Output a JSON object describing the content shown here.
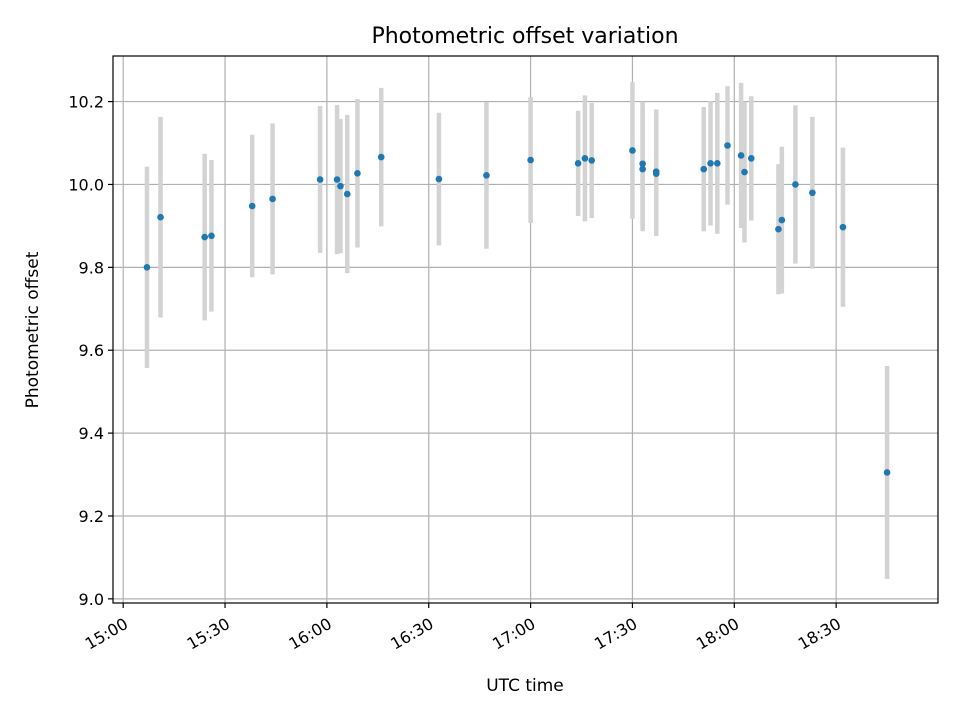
{
  "chart_data": {
    "type": "scatter",
    "title": "Photometric offset variation",
    "xlabel": "UTC time",
    "ylabel": "Photometric offset",
    "x_ticks": [
      "15:00",
      "15:30",
      "16:00",
      "16:30",
      "17:00",
      "17:30",
      "18:00",
      "18:30"
    ],
    "y_ticks": [
      "9.0",
      "9.2",
      "9.4",
      "9.6",
      "9.8",
      "10.0",
      "10.2"
    ],
    "xlim": [
      "14:57",
      "19:00"
    ],
    "ylim": [
      8.99,
      10.31
    ],
    "grid": true,
    "errorbar_color": "#d3d3d3",
    "point_color": "#1f77b4",
    "series": [
      {
        "points": [
          {
            "x": "15:07",
            "y": 9.8,
            "err": 0.243
          },
          {
            "x": "15:11",
            "y": 9.921,
            "err": 0.242
          },
          {
            "x": "15:24",
            "y": 9.873,
            "err": 0.201
          },
          {
            "x": "15:26",
            "y": 9.876,
            "err": 0.183
          },
          {
            "x": "15:38",
            "y": 9.948,
            "err": 0.172
          },
          {
            "x": "15:44",
            "y": 9.965,
            "err": 0.182
          },
          {
            "x": "15:58",
            "y": 10.012,
            "err": 0.177
          },
          {
            "x": "16:03",
            "y": 10.012,
            "err": 0.18
          },
          {
            "x": "16:04",
            "y": 9.996,
            "err": 0.162
          },
          {
            "x": "16:06",
            "y": 9.977,
            "err": 0.191
          },
          {
            "x": "16:09",
            "y": 10.027,
            "err": 0.179
          },
          {
            "x": "16:16",
            "y": 10.066,
            "err": 0.167
          },
          {
            "x": "16:33",
            "y": 10.013,
            "err": 0.16
          },
          {
            "x": "16:47",
            "y": 10.022,
            "err": 0.177
          },
          {
            "x": "17:00",
            "y": 10.059,
            "err": 0.152
          },
          {
            "x": "17:14",
            "y": 10.051,
            "err": 0.127
          },
          {
            "x": "17:16",
            "y": 10.063,
            "err": 0.152
          },
          {
            "x": "17:18",
            "y": 10.058,
            "err": 0.139
          },
          {
            "x": "17:30",
            "y": 10.082,
            "err": 0.165
          },
          {
            "x": "17:33",
            "y": 10.05,
            "err": 0.15
          },
          {
            "x": "17:33",
            "y": 10.037,
            "err": 0.15
          },
          {
            "x": "17:37",
            "y": 10.031,
            "err": 0.15
          },
          {
            "x": "17:37",
            "y": 10.026,
            "err": 0.15
          },
          {
            "x": "17:51",
            "y": 10.037,
            "err": 0.15
          },
          {
            "x": "17:53",
            "y": 10.051,
            "err": 0.15
          },
          {
            "x": "17:55",
            "y": 10.051,
            "err": 0.17
          },
          {
            "x": "17:58",
            "y": 10.094,
            "err": 0.143
          },
          {
            "x": "18:02",
            "y": 10.07,
            "err": 0.175
          },
          {
            "x": "18:03",
            "y": 10.03,
            "err": 0.17
          },
          {
            "x": "18:05",
            "y": 10.063,
            "err": 0.15
          },
          {
            "x": "18:13",
            "y": 9.892,
            "err": 0.157
          },
          {
            "x": "18:14",
            "y": 9.914,
            "err": 0.177
          },
          {
            "x": "18:18",
            "y": 10.0,
            "err": 0.191
          },
          {
            "x": "18:23",
            "y": 9.98,
            "err": 0.183
          },
          {
            "x": "18:32",
            "y": 9.897,
            "err": 0.192
          },
          {
            "x": "18:45",
            "y": 9.305,
            "err": 0.257
          }
        ]
      }
    ]
  }
}
